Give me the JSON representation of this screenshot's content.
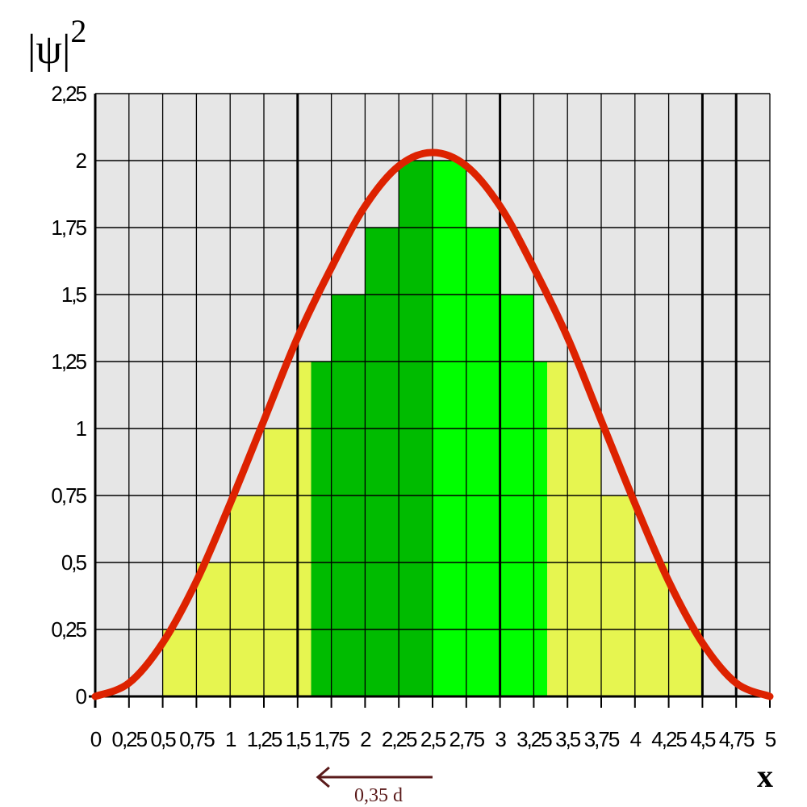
{
  "chart_data": {
    "type": "area",
    "ylabel": "|ψ|²",
    "ylabel_base": "|ψ|",
    "ylabel_exp": "2",
    "xlabel": "x",
    "xlim": [
      0,
      5
    ],
    "ylim": [
      0,
      2.25
    ],
    "x_ticks": [
      "0",
      "0,25",
      "0,5",
      "0,75",
      "1",
      "1,25",
      "1,5",
      "1,75",
      "2",
      "2,25",
      "2,5",
      "2,75",
      "3",
      "3,25",
      "3,5",
      "3,75",
      "4",
      "4,25",
      "4,5",
      "4,75",
      "5"
    ],
    "y_ticks": [
      "0",
      "0,25",
      "0,5",
      "0,75",
      "1",
      "1,25",
      "1,5",
      "1,75",
      "2",
      "2,25"
    ],
    "grid": true,
    "curve": {
      "name": "|ψ|²",
      "color": "#dd2200",
      "x": [
        0,
        0.25,
        0.5,
        0.75,
        1,
        1.25,
        1.5,
        1.75,
        2,
        2.25,
        2.5,
        2.75,
        3,
        3.25,
        3.5,
        3.75,
        4,
        4.25,
        4.5,
        4.75,
        5
      ],
      "y": [
        0,
        0.05,
        0.2,
        0.43,
        0.72,
        1.03,
        1.34,
        1.6,
        1.83,
        1.98,
        2.03,
        1.98,
        1.83,
        1.6,
        1.34,
        1.03,
        0.72,
        0.43,
        0.2,
        0.05,
        0
      ]
    },
    "bars": [
      {
        "x0": 0.5,
        "x1": 0.75,
        "y": 0.25,
        "color": "#e6f550"
      },
      {
        "x0": 0.75,
        "x1": 1.0,
        "y": 0.5,
        "color": "#e6f550"
      },
      {
        "x0": 1.0,
        "x1": 1.25,
        "y": 0.75,
        "color": "#e6f550"
      },
      {
        "x0": 1.25,
        "x1": 1.5,
        "y": 1.0,
        "color": "#e6f550"
      },
      {
        "x0": 1.5,
        "x1": 1.6,
        "y": 1.25,
        "color": "#e6f550"
      },
      {
        "x0": 1.6,
        "x1": 1.75,
        "y": 1.25,
        "color": "#00bb00"
      },
      {
        "x0": 1.75,
        "x1": 2.0,
        "y": 1.5,
        "color": "#00bb00"
      },
      {
        "x0": 2.0,
        "x1": 2.25,
        "y": 1.75,
        "color": "#00bb00"
      },
      {
        "x0": 2.25,
        "x1": 2.5,
        "y": 2.0,
        "color": "#00bb00"
      },
      {
        "x0": 2.5,
        "x1": 2.75,
        "y": 2.0,
        "color": "#00ff00"
      },
      {
        "x0": 2.75,
        "x1": 3.0,
        "y": 1.75,
        "color": "#00ff00"
      },
      {
        "x0": 3.0,
        "x1": 3.25,
        "y": 1.5,
        "color": "#00ff00"
      },
      {
        "x0": 3.25,
        "x1": 3.35,
        "y": 1.25,
        "color": "#00ff00"
      },
      {
        "x0": 3.35,
        "x1": 3.5,
        "y": 1.25,
        "color": "#e6f550"
      },
      {
        "x0": 3.5,
        "x1": 3.75,
        "y": 1.0,
        "color": "#e6f550"
      },
      {
        "x0": 3.75,
        "x1": 4.0,
        "y": 0.75,
        "color": "#e6f550"
      },
      {
        "x0": 4.0,
        "x1": 4.25,
        "y": 0.5,
        "color": "#e6f550"
      },
      {
        "x0": 4.25,
        "x1": 4.5,
        "y": 0.25,
        "color": "#e6f550"
      }
    ],
    "annotation": {
      "text": "0,35 d",
      "arrow_from_x": 2.5,
      "arrow_to_x": 1.65
    }
  }
}
